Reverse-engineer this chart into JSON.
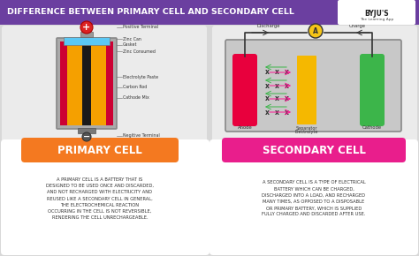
{
  "title": "DIFFERENCE BETWEEN PRIMARY CELL AND SECONDARY CELL",
  "title_bg": "#6b3fa0",
  "title_color": "#ffffff",
  "bg_color": "#d8d8d8",
  "primary_cell_label": "PRIMARY CELL",
  "secondary_cell_label": "SECONDARY CELL",
  "primary_color": "#f47920",
  "secondary_color": "#e91e8c",
  "primary_text": "A PRIMARY CELL IS A BATTERY THAT IS\nDESIGNED TO BE USED ONCE AND DISCARDED,\nAND NOT RECHARGED WITH ELECTRICITY AND\nREUSED LIKE A SECONDARY CELL IN GENERAL,\nTHE ELECTROCHEMICAL REACTION\nOCCURRING IN THE CELL IS NOT REVERSIBLE,\nRENDERING THE CELL UNRECHARGEABLE.",
  "secondary_text": "A SECONDARY CELL IS A TYPE OF ELECTRICAL\nBATTERY WHICH CAN BE CHARGED,\nDISCHARGED INTO A LOAD, AND RECHARGED\nMANY TIMES, AS OPPOSED TO A DISPOSABLE\nOR PRIMARY BATTERY, WHICH IS SUPPLIED\nFULLY CHARGED AND DISCARDED AFTER USE.",
  "labels_primary": [
    "Positive Terminal",
    "Zinc Can",
    "Gasket",
    "Zinc Consumed",
    "Electrolyte Paste",
    "Carbon Rod",
    "Cathode Mix",
    "Negitive Terminal"
  ]
}
